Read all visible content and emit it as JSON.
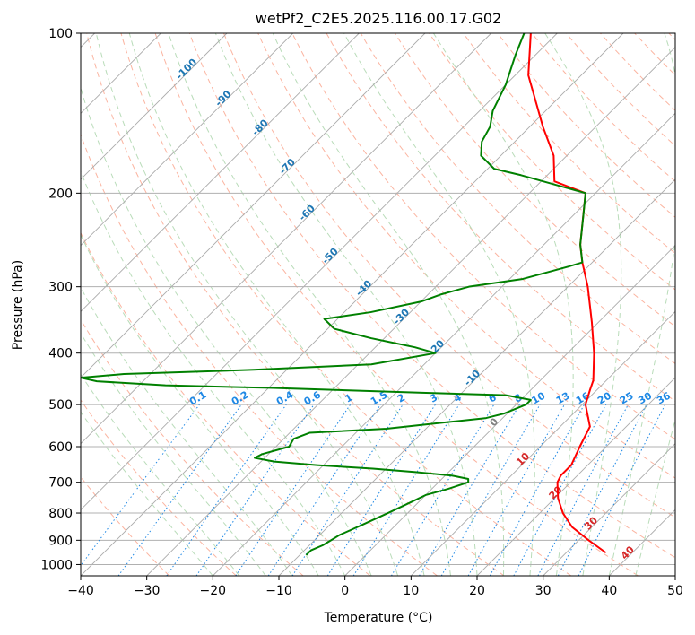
{
  "chart_data": {
    "type": "line",
    "title": "wetPf2_C2E5.2025.116.00.17.G02",
    "xlabel": "Temperature (°C)",
    "ylabel": "Pressure (hPa)",
    "xlim": [
      -40,
      50
    ],
    "ylim": [
      1050,
      100
    ],
    "y_scale": "log",
    "x_ticks": [
      -40,
      -30,
      -20,
      -10,
      0,
      10,
      20,
      30,
      40,
      50
    ],
    "y_ticks": [
      100,
      200,
      300,
      400,
      500,
      600,
      700,
      800,
      900,
      1000
    ],
    "grid": true,
    "diagram": "skew-T log-p",
    "series": [
      {
        "role": "temperature",
        "color": "#ff0000",
        "points": [
          [
            950,
            36.0
          ],
          [
            900,
            31.5
          ],
          [
            850,
            27.0
          ],
          [
            800,
            23.5
          ],
          [
            750,
            20.5
          ],
          [
            700,
            18.0
          ],
          [
            680,
            17.5
          ],
          [
            650,
            17.5
          ],
          [
            600,
            16.0
          ],
          [
            550,
            14.5
          ],
          [
            500,
            10.5
          ],
          [
            470,
            9.0
          ],
          [
            450,
            8.0
          ],
          [
            400,
            4.0
          ],
          [
            350,
            -1.0
          ],
          [
            300,
            -7.0
          ],
          [
            270,
            -11.5
          ],
          [
            250,
            -14.5
          ],
          [
            200,
            -21.5
          ],
          [
            190,
            -28.0
          ],
          [
            170,
            -32.0
          ],
          [
            150,
            -38.0
          ],
          [
            120,
            -48.0
          ],
          [
            100,
            -54.0
          ]
        ]
      },
      {
        "role": "dewpoint",
        "color": "#008000",
        "points": [
          [
            960,
            -9.0
          ],
          [
            940,
            -9.0
          ],
          [
            920,
            -8.0
          ],
          [
            900,
            -7.5
          ],
          [
            880,
            -7.0
          ],
          [
            860,
            -6.0
          ],
          [
            840,
            -5.0
          ],
          [
            800,
            -3.0
          ],
          [
            770,
            -1.5
          ],
          [
            740,
            0.0
          ],
          [
            720,
            2.5
          ],
          [
            700,
            4.5
          ],
          [
            690,
            4.0
          ],
          [
            680,
            1.0
          ],
          [
            670,
            -5.0
          ],
          [
            660,
            -12.0
          ],
          [
            650,
            -21.0
          ],
          [
            640,
            -28.0
          ],
          [
            630,
            -31.5
          ],
          [
            620,
            -31.0
          ],
          [
            600,
            -28.0
          ],
          [
            580,
            -28.5
          ],
          [
            565,
            -27.0
          ],
          [
            555,
            -16.0
          ],
          [
            540,
            -8.0
          ],
          [
            530,
            -2.5
          ],
          [
            520,
            -0.5
          ],
          [
            500,
            1.5
          ],
          [
            490,
            1.5
          ],
          [
            480,
            -3.0
          ],
          [
            475,
            -16.0
          ],
          [
            465,
            -40.0
          ],
          [
            460,
            -56.0
          ],
          [
            452,
            -67.0
          ],
          [
            445,
            -70.0
          ],
          [
            438,
            -64.0
          ],
          [
            430,
            -45.0
          ],
          [
            420,
            -28.0
          ],
          [
            400,
            -20.0
          ],
          [
            390,
            -24.0
          ],
          [
            375,
            -32.0
          ],
          [
            360,
            -39.0
          ],
          [
            345,
            -42.0
          ],
          [
            335,
            -36.0
          ],
          [
            320,
            -30.0
          ],
          [
            310,
            -28.0
          ],
          [
            300,
            -25.0
          ],
          [
            290,
            -18.0
          ],
          [
            275,
            -13.0
          ],
          [
            270,
            -11.5
          ],
          [
            250,
            -14.5
          ],
          [
            220,
            -18.5
          ],
          [
            200,
            -21.5
          ],
          [
            185,
            -34.0
          ],
          [
            180,
            -39.0
          ],
          [
            170,
            -43.0
          ],
          [
            160,
            -45.0
          ],
          [
            150,
            -46.0
          ],
          [
            140,
            -48.0
          ],
          [
            125,
            -50.0
          ],
          [
            110,
            -53.0
          ],
          [
            100,
            -55.0
          ]
        ]
      }
    ],
    "mixing_ratio_lines": [
      0.1,
      0.2,
      0.4,
      0.6,
      1,
      1.5,
      2,
      3,
      4,
      6,
      8,
      10,
      13,
      16,
      20,
      25,
      30,
      36
    ],
    "mixing_ratio_labels": [
      "0.1",
      "0.2",
      "0.4",
      "0.6",
      "1",
      "1.5",
      "2",
      "3",
      "4",
      "6",
      "8",
      "10",
      "13",
      "16",
      "20",
      "25",
      "30",
      "36"
    ],
    "isotherm_labels": [
      "-100",
      "-90",
      "-80",
      "-70",
      "-60",
      "-50",
      "-40",
      "-30",
      "-20",
      "-10",
      "0",
      "10",
      "20",
      "30",
      "40"
    ],
    "isotherm_values": [
      -100,
      -90,
      -80,
      -70,
      -60,
      -50,
      -40,
      -30,
      -20,
      -10,
      0,
      10,
      20,
      30,
      40
    ],
    "colors": {
      "temperature": "#ff0000",
      "dewpoint": "#008000",
      "isotherm": "#aaaaaa",
      "dry_adiabat": "#fbb4a0",
      "moist_adiabat": "#b9dcb9",
      "mixing_ratio": "#1e88e5",
      "cold_labels": "#1f77b4",
      "warm_labels": "#d62728",
      "zero_label": "#808080",
      "grid": "#b0b0b0"
    }
  }
}
